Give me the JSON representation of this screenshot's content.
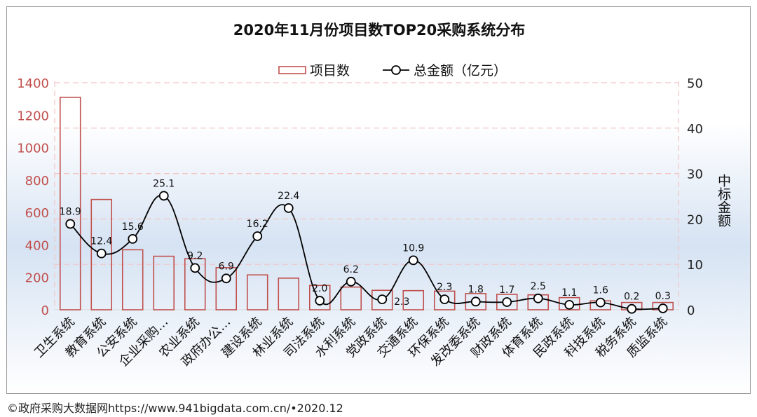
{
  "chart_data": {
    "type": "bar",
    "title": "2020年11月份项目数TOP20采购系统分布",
    "categories": [
      "卫生系统",
      "教育系统",
      "公安系统",
      "企业采购…",
      "农业系统",
      "政府办公…",
      "建设系统",
      "林业系统",
      "司法系统",
      "水利系统",
      "党政系统",
      "交通系统",
      "环保系统",
      "发改委系统",
      "财政系统",
      "体育系统",
      "民政系统",
      "科技系统",
      "税务系统",
      "质监系统"
    ],
    "series": [
      {
        "name": "项目数",
        "kind": "bar",
        "axis": "left",
        "values": [
          1310,
          680,
          370,
          330,
          315,
          260,
          215,
          195,
          150,
          140,
          120,
          118,
          115,
          100,
          95,
          92,
          75,
          55,
          45,
          45
        ]
      },
      {
        "name": "总金额（亿元）",
        "kind": "line",
        "axis": "right",
        "values": [
          18.9,
          12.4,
          15.6,
          25.1,
          9.2,
          6.9,
          16.2,
          22.4,
          2.0,
          6.2,
          2.3,
          10.9,
          2.3,
          1.8,
          1.7,
          2.5,
          1.1,
          1.6,
          0.2,
          0.3
        ],
        "labels": [
          "18.9",
          "12.4",
          "15.6",
          "25.1",
          "9.2",
          "6.9",
          "16.2",
          "22.4",
          "2.0",
          "6.2",
          "2.3",
          "10.9",
          "2.3",
          "1.8",
          "1.7",
          "2.5",
          "1.1",
          "1.6",
          "0.2",
          "0.3"
        ]
      }
    ],
    "y_left": {
      "min": 0,
      "max": 1400,
      "ticks": [
        "0",
        "200",
        "400",
        "600",
        "800",
        "1000",
        "1200",
        "1400"
      ]
    },
    "y_right": {
      "min": 0,
      "max": 50,
      "ticks": [
        "0",
        "10",
        "20",
        "30",
        "40",
        "50"
      ],
      "label": "中标金额"
    },
    "legend": {
      "position": "top",
      "entries": [
        "项目数",
        "总金额（亿元）"
      ]
    },
    "grid": "dashed-horizontal",
    "colors": {
      "bar_stroke": "#c0504d",
      "line": "#000000",
      "left_axis_text": "#c0504d",
      "grid": "#f2c4c4"
    }
  },
  "footer": "©政府采购大数据网https://www.941bigdata.com.cn/•2020.12"
}
